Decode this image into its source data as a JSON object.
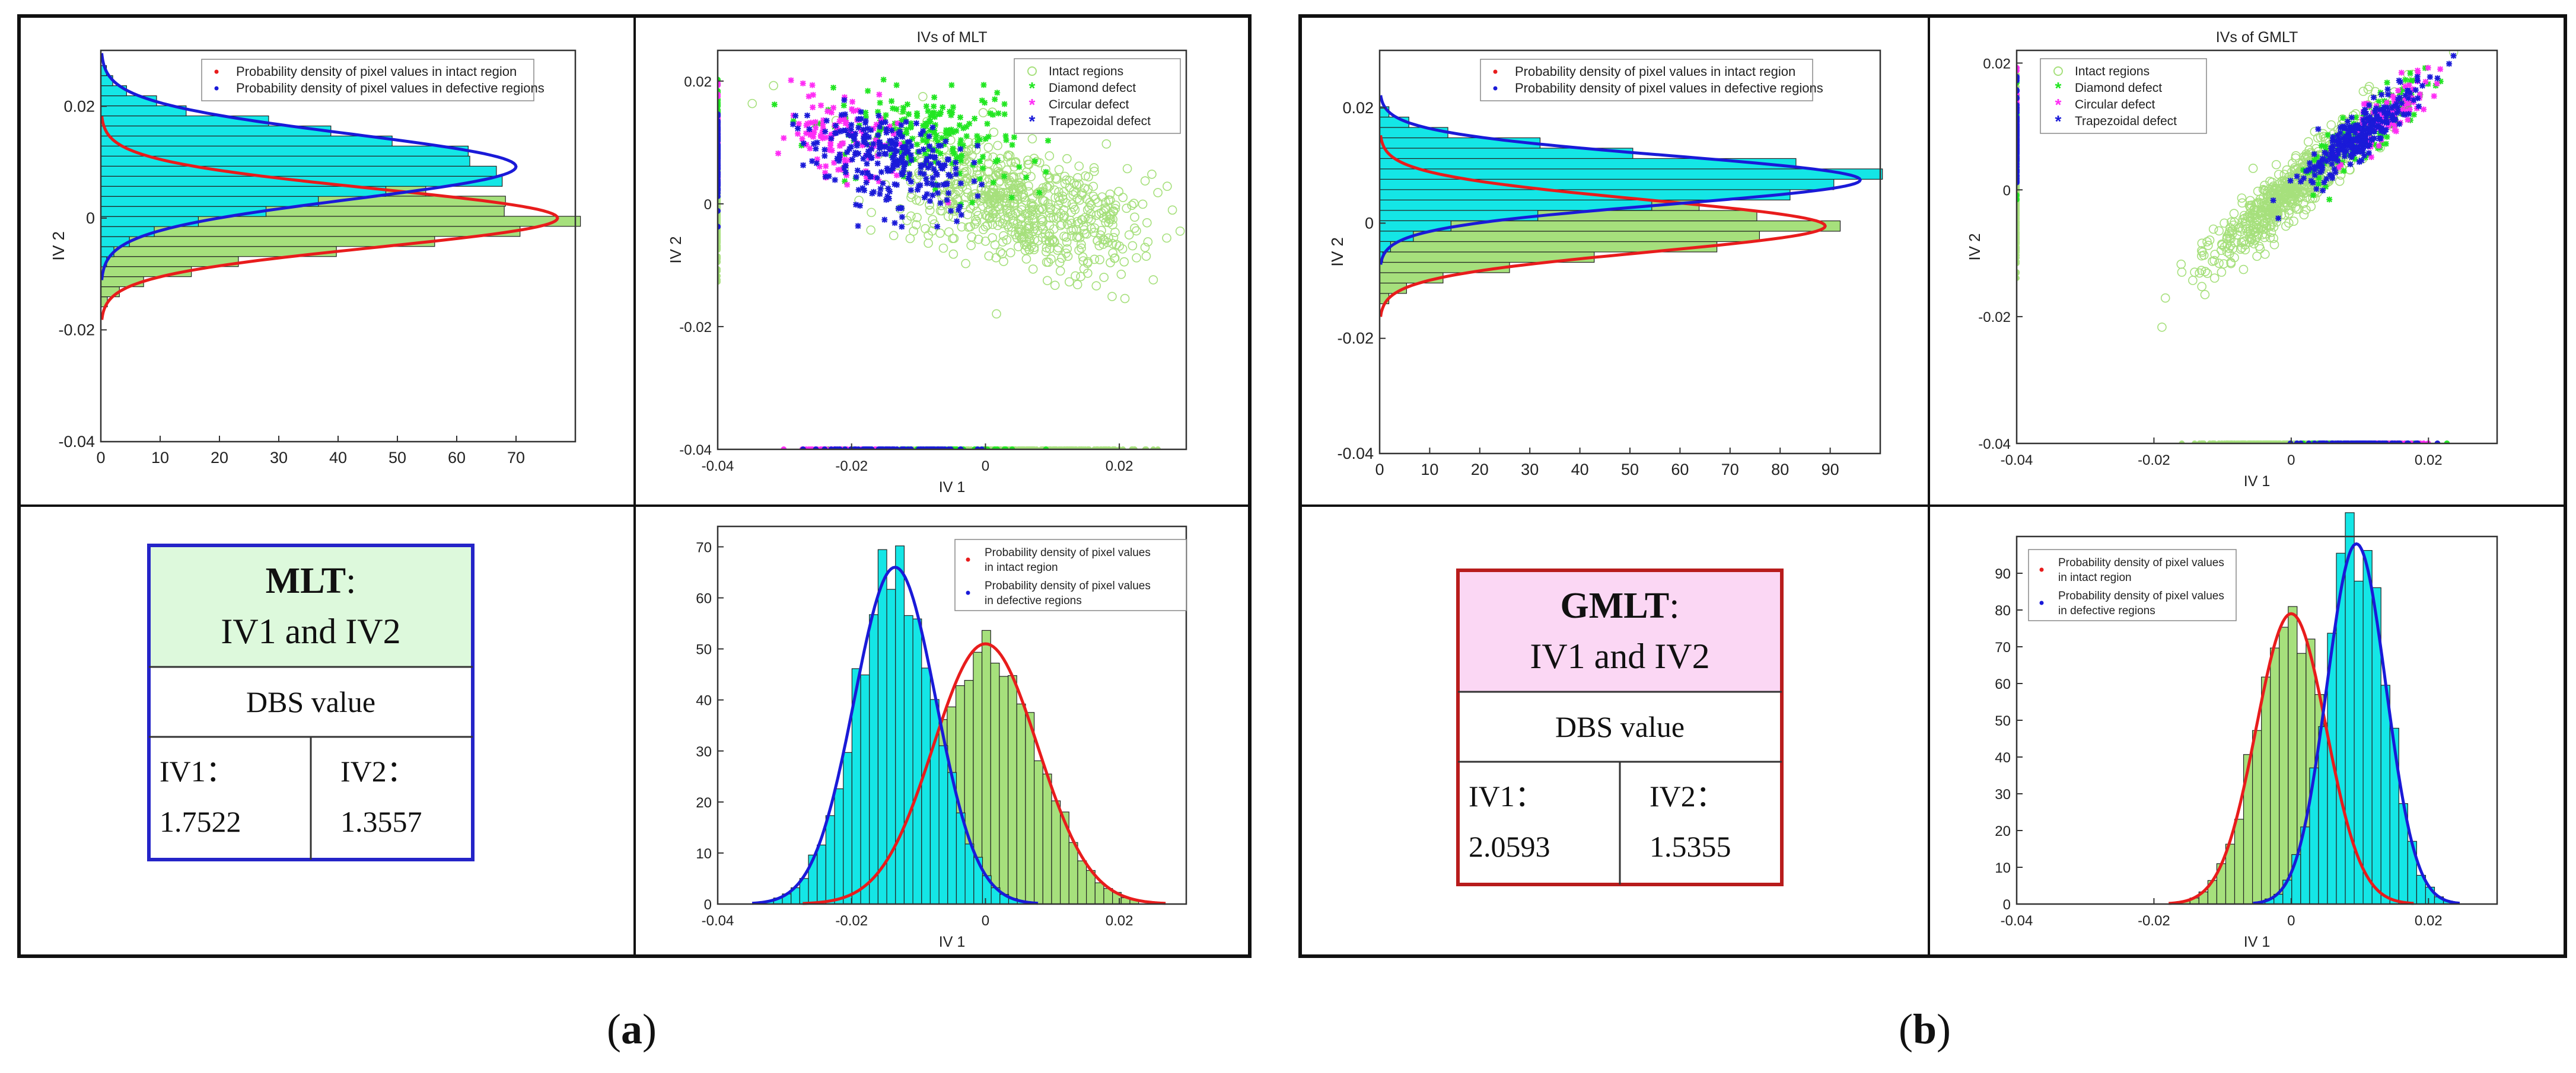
{
  "colors": {
    "cyan": "#14e6e6",
    "green": "#a6e07c",
    "red": "#e81c1c",
    "blue": "#1a1ad8",
    "magenta": "#ff2df5",
    "bright_green": "#22e622",
    "mlt_box_border": "#2424c8",
    "mlt_box_fill": "#ddf9dc",
    "gmlt_box_border": "#b81c1c",
    "gmlt_box_fill": "#fbd7f4"
  },
  "panels": [
    {
      "panel_label": "(a)",
      "panel_letter": "a",
      "method_title": "MLT",
      "title_colon": ":",
      "subtitle": "IV1 and IV2",
      "dbs_header": "DBS value",
      "iv1_label": "IV1：",
      "iv1_value": "1.7522",
      "iv2_label": "IV2：",
      "iv2_value": "1.3557"
    },
    {
      "panel_label": "(b)",
      "panel_letter": "b",
      "method_title": "GMLT",
      "title_colon": ":",
      "subtitle": "IV1 and IV2",
      "dbs_header": "DBS value",
      "iv1_label": "IV1：",
      "iv1_value": "2.0593",
      "iv2_label": "IV2：",
      "iv2_value": "1.5355"
    }
  ],
  "chart_data": [
    {
      "id": "a_iv2_hist",
      "type": "bar",
      "orientation": "horizontal",
      "title": "",
      "xlabel": "",
      "ylabel": "IV 2",
      "xlim": [
        0,
        80
      ],
      "ylim": [
        -0.04,
        0.03
      ],
      "xticks": [
        "0",
        "10",
        "20",
        "30",
        "40",
        "50",
        "60",
        "70"
      ],
      "yticks": [
        "-0.04",
        "-0.02",
        "0",
        "0.02"
      ],
      "legend": [
        "Probability density of pixel values in intact region",
        "Probability density of pixel values in defective regions"
      ],
      "series": [
        {
          "name": "intact",
          "color": "green",
          "mean": 0.0,
          "std": 0.0052,
          "peak": 77
        },
        {
          "name": "defective",
          "color": "cyan",
          "mean": 0.0092,
          "std": 0.0058,
          "peak": 70
        }
      ]
    },
    {
      "id": "a_scatter",
      "type": "scatter",
      "title": "IVs of MLT",
      "xlabel": "IV 1",
      "ylabel": "IV 2",
      "xlim": [
        -0.04,
        0.03
      ],
      "ylim": [
        -0.04,
        0.025
      ],
      "xticks": [
        "-0.04",
        "-0.02",
        "0",
        "0.02"
      ],
      "yticks": [
        "-0.04",
        "-0.02",
        "0",
        "0.02"
      ],
      "legend": [
        "Intact regions",
        "Diamond defect",
        "Circular defect",
        "Trapezoidal defect"
      ],
      "clusters": [
        {
          "name": "Intact regions",
          "cx": 0.005,
          "cy": 0.0,
          "sx": 0.0095,
          "sy": 0.0052,
          "rho": -0.45,
          "n": 650
        },
        {
          "name": "Diamond defect",
          "cx": -0.009,
          "cy": 0.011,
          "sx": 0.0075,
          "sy": 0.0042,
          "rho": -0.3,
          "n": 190
        },
        {
          "name": "Circular defect",
          "cx": -0.021,
          "cy": 0.011,
          "sx": 0.0045,
          "sy": 0.0035,
          "rho": -0.2,
          "n": 120
        },
        {
          "name": "Trapezoidal defect",
          "cx": -0.014,
          "cy": 0.0075,
          "sx": 0.0062,
          "sy": 0.0042,
          "rho": -0.35,
          "n": 260
        }
      ]
    },
    {
      "id": "a_iv1_hist",
      "type": "bar",
      "title": "",
      "xlabel": "IV 1",
      "ylabel": "",
      "xlim": [
        -0.04,
        0.03
      ],
      "ylim": [
        0,
        74
      ],
      "xticks": [
        "-0.04",
        "-0.02",
        "0",
        "0.02"
      ],
      "yticks": [
        "0",
        "10",
        "20",
        "30",
        "40",
        "50",
        "60",
        "70"
      ],
      "legend": [
        "Probability density of pixel values in intact region",
        "Probability density of pixel values in defective regions"
      ],
      "series": [
        {
          "name": "intact",
          "color": "green",
          "mean": 0.0,
          "std": 0.0078,
          "peak": 51
        },
        {
          "name": "defective",
          "color": "cyan",
          "mean": -0.0135,
          "std": 0.0061,
          "peak": 66
        }
      ]
    },
    {
      "id": "b_iv2_hist",
      "type": "bar",
      "orientation": "horizontal",
      "title": "",
      "xlabel": "",
      "ylabel": "IV 2",
      "xlim": [
        0,
        100
      ],
      "ylim": [
        -0.04,
        0.03
      ],
      "xticks": [
        "0",
        "10",
        "20",
        "30",
        "40",
        "50",
        "60",
        "70",
        "80",
        "90"
      ],
      "yticks": [
        "-0.04",
        "-0.02",
        "0",
        "0.02"
      ],
      "legend": [
        "Probability density of pixel values in intact region",
        "Probability density of pixel values in defective regions"
      ],
      "series": [
        {
          "name": "intact",
          "color": "green",
          "mean": -0.0005,
          "std": 0.0045,
          "peak": 89
        },
        {
          "name": "defective",
          "color": "cyan",
          "mean": 0.0075,
          "std": 0.0042,
          "peak": 96
        }
      ]
    },
    {
      "id": "b_scatter",
      "type": "scatter",
      "title": "IVs of GMLT",
      "xlabel": "IV 1",
      "ylabel": "IV 2",
      "xlim": [
        -0.04,
        0.03
      ],
      "ylim": [
        -0.04,
        0.022
      ],
      "xticks": [
        "-0.04",
        "-0.02",
        "0",
        "0.02"
      ],
      "yticks": [
        "-0.04",
        "-0.02",
        "0",
        "0.02"
      ],
      "legend": [
        "Intact regions",
        "Diamond defect",
        "Circular defect",
        "Trapezoidal defect"
      ],
      "clusters": [
        {
          "name": "Intact regions",
          "cx": 0.0,
          "cy": 0.0,
          "sx": 0.0062,
          "sy": 0.0062,
          "rho": 0.93,
          "n": 650
        },
        {
          "name": "Diamond defect",
          "cx": 0.011,
          "cy": 0.0095,
          "sx": 0.0042,
          "sy": 0.004,
          "rho": 0.85,
          "n": 150
        },
        {
          "name": "Circular defect",
          "cx": 0.014,
          "cy": 0.012,
          "sx": 0.0038,
          "sy": 0.0035,
          "rho": 0.85,
          "n": 110
        },
        {
          "name": "Trapezoidal defect",
          "cx": 0.01,
          "cy": 0.0085,
          "sx": 0.0042,
          "sy": 0.004,
          "rho": 0.88,
          "n": 260
        }
      ]
    },
    {
      "id": "b_iv1_hist",
      "type": "bar",
      "title": "",
      "xlabel": "IV 1",
      "ylabel": "",
      "xlim": [
        -0.04,
        0.03
      ],
      "ylim": [
        0,
        100
      ],
      "xticks": [
        "-0.04",
        "-0.02",
        "0",
        "0.02"
      ],
      "yticks": [
        "0",
        "10",
        "20",
        "30",
        "40",
        "50",
        "60",
        "70",
        "80",
        "90"
      ],
      "legend": [
        "Probability density of pixel values in intact region",
        "Probability density of pixel values in defective regions"
      ],
      "series": [
        {
          "name": "intact",
          "color": "green",
          "mean": 0.0,
          "std": 0.0051,
          "peak": 79
        },
        {
          "name": "defective",
          "color": "cyan",
          "mean": 0.0095,
          "std": 0.0043,
          "peak": 98
        }
      ]
    }
  ]
}
